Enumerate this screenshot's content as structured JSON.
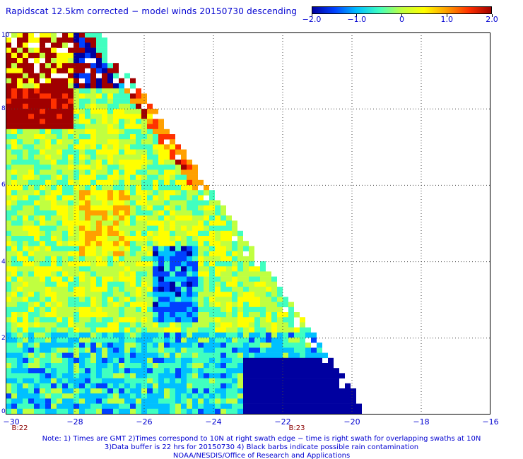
{
  "title": "Rapidscat 12.5km corrected − model winds 20150730 descending",
  "colorbar": {
    "labels": [
      "−2.0",
      "−1.0",
      "0",
      "1.0",
      "2.0"
    ],
    "range": [
      -2.0,
      2.0
    ],
    "colors": [
      "#0000a0",
      "#0040ff",
      "#00c0ff",
      "#40ffc0",
      "#c0ff40",
      "#ffff00",
      "#ffa000",
      "#ff3000",
      "#a00000"
    ]
  },
  "axes": {
    "x_labels": [
      "−30",
      "−28",
      "−26",
      "−24",
      "−22",
      "−20",
      "−18",
      "−16"
    ],
    "x_values": [
      -30,
      -28,
      -26,
      -24,
      -22,
      -20,
      -18,
      -16
    ],
    "y_labels": [
      "10",
      "8",
      "6",
      "4",
      "2",
      "0"
    ],
    "y_values": [
      10,
      8,
      6,
      4,
      2,
      0
    ],
    "x_range": [
      -30,
      -16
    ],
    "y_range": [
      0,
      10
    ]
  },
  "time_labels": [
    {
      "text": "B:22",
      "lon": -30
    },
    {
      "text": "B:23",
      "lon": -22
    }
  ],
  "notes": [
    "Note: 1) Times are GMT 2)Times correspond to 10N at right swath edge − time is right swath for overlapping swaths at 10N",
    "3)Data buffer is 22 hrs for 20150730 4) Black barbs indicate possible rain contamination",
    "NOAA/NESDIS/Office of Research and Applications"
  ]
}
